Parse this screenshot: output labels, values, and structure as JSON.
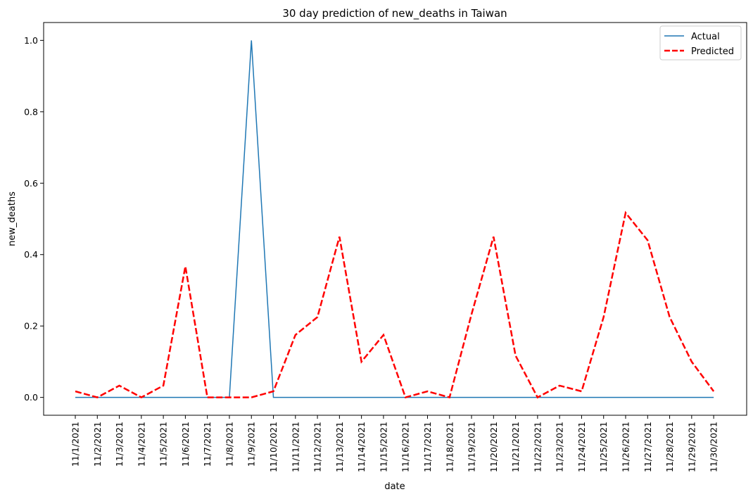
{
  "chart_data": {
    "type": "line",
    "title": "30 day prediction of new_deaths in Taiwan",
    "xlabel": "date",
    "ylabel": "new_deaths",
    "x": [
      "11/1/2021",
      "11/2/2021",
      "11/3/2021",
      "11/4/2021",
      "11/5/2021",
      "11/6/2021",
      "11/7/2021",
      "11/8/2021",
      "11/9/2021",
      "11/10/2021",
      "11/11/2021",
      "11/12/2021",
      "11/13/2021",
      "11/14/2021",
      "11/15/2021",
      "11/16/2021",
      "11/17/2021",
      "11/18/2021",
      "11/19/2021",
      "11/20/2021",
      "11/21/2021",
      "11/22/2021",
      "11/23/2021",
      "11/24/2021",
      "11/25/2021",
      "11/26/2021",
      "11/27/2021",
      "11/28/2021",
      "11/29/2021",
      "11/30/2021"
    ],
    "ylim": [
      -0.05,
      1.05
    ],
    "yticks": [
      "0.0",
      "0.2",
      "0.4",
      "0.6",
      "0.8",
      "1.0"
    ],
    "grid": false,
    "legend_position": "top-right",
    "series": [
      {
        "name": "Actual",
        "color": "#1f77b4",
        "style": "solid",
        "values": [
          0,
          0,
          0,
          0,
          0,
          0,
          0,
          0,
          1,
          0,
          0,
          0,
          0,
          0,
          0,
          0,
          0,
          0,
          0,
          0,
          0,
          0,
          0,
          0,
          0,
          0,
          0,
          0,
          0,
          0
        ]
      },
      {
        "name": "Predicted",
        "color": "#ff0000",
        "style": "dashed",
        "values": [
          0.017,
          0,
          0.033,
          0,
          0.033,
          0.367,
          0,
          0,
          0,
          0.017,
          0.175,
          0.225,
          0.45,
          0.1,
          0.175,
          0,
          0.017,
          0,
          0.233,
          0.45,
          0.117,
          0,
          0.033,
          0.017,
          0.225,
          0.517,
          0.44,
          0.225,
          0.1,
          0.017
        ]
      }
    ]
  }
}
